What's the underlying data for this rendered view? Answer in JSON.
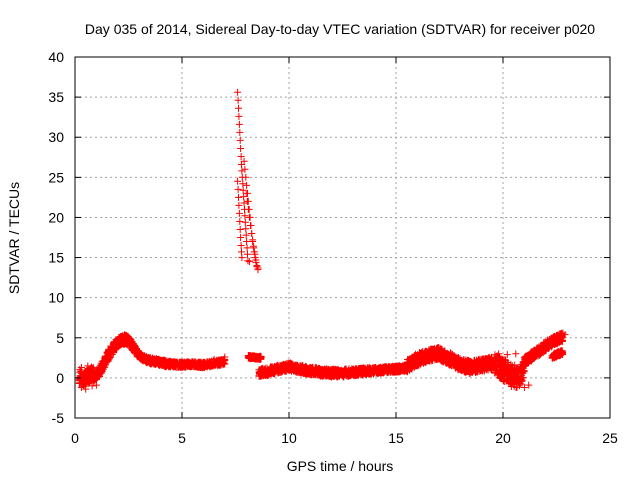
{
  "chart_data": {
    "type": "scatter",
    "title": "Day 035 of 2014, Sidereal Day-to-day VTEC variation (SDTVAR) for receiver p020",
    "xlabel": "GPS time / hours",
    "ylabel": "SDTVAR / TECUs",
    "xlim": [
      0,
      25
    ],
    "ylim": [
      -5,
      40
    ],
    "xticks": [
      0,
      5,
      10,
      15,
      20,
      25
    ],
    "yticks": [
      -5,
      0,
      5,
      10,
      15,
      20,
      25,
      30,
      35,
      40
    ],
    "grid": true,
    "marker": "+",
    "series": [
      {
        "name": "SDTVAR",
        "color": "#ff0000",
        "bands": [
          {
            "x": [
              0.2,
              0.4,
              0.6,
              0.8,
              1.0,
              1.2,
              1.4,
              1.6,
              1.8,
              2.0,
              2.2,
              2.4,
              2.6,
              2.8,
              3.0,
              3.4,
              3.8,
              4.2,
              4.6,
              5.0,
              5.5,
              6.0,
              6.5,
              7.0
            ],
            "y": [
              0.3,
              -0.3,
              0.2,
              0.5,
              0.3,
              1.0,
              2.0,
              3.0,
              3.8,
              4.4,
              4.7,
              4.8,
              4.3,
              3.5,
              2.8,
              2.2,
              2.0,
              1.8,
              1.7,
              1.6,
              1.7,
              1.6,
              1.8,
              2.0
            ],
            "spread": [
              1.0,
              0.8,
              1.0,
              0.9,
              0.7,
              0.7,
              0.7,
              0.7,
              0.7,
              0.6,
              0.6,
              0.6,
              0.6,
              0.5,
              0.4,
              0.4,
              0.4,
              0.4,
              0.35,
              0.35,
              0.35,
              0.35,
              0.35,
              0.35
            ]
          },
          {
            "x": [
              8.1,
              8.3,
              8.5,
              8.7
            ],
            "y": [
              2.6,
              2.6,
              2.5,
              2.5
            ],
            "spread": [
              0.2,
              0.2,
              0.2,
              0.2
            ]
          },
          {
            "x": [
              8.6,
              9.0,
              9.5,
              10.0,
              10.5,
              11.0,
              11.5,
              12.0,
              12.5,
              13.0,
              13.5,
              14.0,
              14.5,
              15.0,
              15.5
            ],
            "y": [
              0.6,
              0.8,
              1.1,
              1.4,
              1.1,
              0.9,
              0.7,
              0.6,
              0.6,
              0.7,
              0.8,
              0.9,
              1.0,
              1.1,
              1.2
            ],
            "spread": [
              0.5,
              0.5,
              0.5,
              0.5,
              0.5,
              0.5,
              0.5,
              0.5,
              0.5,
              0.45,
              0.45,
              0.4,
              0.4,
              0.4,
              0.4
            ]
          },
          {
            "x": [
              15.5,
              16.0,
              16.5,
              17.0,
              17.5,
              18.0,
              18.5,
              19.0,
              19.5
            ],
            "y": [
              1.5,
              2.3,
              2.8,
              3.0,
              2.4,
              1.6,
              1.3,
              1.6,
              1.8
            ],
            "spread": [
              0.8,
              0.8,
              0.8,
              0.8,
              0.8,
              0.8,
              0.8,
              0.8,
              0.8
            ]
          },
          {
            "x": [
              19.6,
              20.0,
              20.4,
              20.8,
              21.0
            ],
            "y": [
              1.8,
              1.0,
              0.4,
              -0.2,
              1.5
            ],
            "spread": [
              1.2,
              1.4,
              1.5,
              1.4,
              1.0
            ]
          },
          {
            "x": [
              21.0,
              21.3,
              21.6,
              22.0,
              22.4,
              22.8
            ],
            "y": [
              2.0,
              2.6,
              3.2,
              4.0,
              4.6,
              5.2
            ],
            "spread": [
              0.6,
              0.6,
              0.6,
              0.6,
              0.6,
              0.6
            ]
          },
          {
            "x": [
              22.3,
              22.6,
              22.8
            ],
            "y": [
              2.7,
              3.0,
              3.2
            ],
            "spread": [
              0.3,
              0.3,
              0.3
            ]
          }
        ],
        "points": [
          [
            7.6,
            35.6
          ],
          [
            7.62,
            34.6
          ],
          [
            7.64,
            33.6
          ],
          [
            7.66,
            32.6
          ],
          [
            7.68,
            31.6
          ],
          [
            7.7,
            30.6
          ],
          [
            7.72,
            29.6
          ],
          [
            7.74,
            28.6
          ],
          [
            7.76,
            27.6
          ],
          [
            7.78,
            26.6
          ],
          [
            7.8,
            25.8
          ],
          [
            7.82,
            25.0
          ],
          [
            7.84,
            24.2
          ],
          [
            7.86,
            23.4
          ],
          [
            7.88,
            22.6
          ],
          [
            7.9,
            21.8
          ],
          [
            7.92,
            21.0
          ],
          [
            7.94,
            20.2
          ],
          [
            7.96,
            19.4
          ],
          [
            7.98,
            18.6
          ],
          [
            8.0,
            17.8
          ],
          [
            8.02,
            17.0
          ],
          [
            8.04,
            16.2
          ],
          [
            8.06,
            15.4
          ],
          [
            8.08,
            14.6
          ],
          [
            7.6,
            24.5
          ],
          [
            7.62,
            23.5
          ],
          [
            7.64,
            22.5
          ],
          [
            7.66,
            21.5
          ],
          [
            7.68,
            20.5
          ],
          [
            7.7,
            19.5
          ],
          [
            7.72,
            18.5
          ],
          [
            7.74,
            17.5
          ],
          [
            7.76,
            16.5
          ],
          [
            7.78,
            15.7
          ],
          [
            7.8,
            15.0
          ],
          [
            7.9,
            27.0
          ],
          [
            7.94,
            26.0
          ],
          [
            7.98,
            25.0
          ],
          [
            8.02,
            24.0
          ],
          [
            8.06,
            23.0
          ],
          [
            8.1,
            22.0
          ],
          [
            8.14,
            21.0
          ],
          [
            8.18,
            20.0
          ],
          [
            8.22,
            19.0
          ],
          [
            8.26,
            18.0
          ],
          [
            8.3,
            17.2
          ],
          [
            8.34,
            16.4
          ],
          [
            8.38,
            15.7
          ],
          [
            8.42,
            15.0
          ],
          [
            8.46,
            14.4
          ],
          [
            8.5,
            13.9
          ],
          [
            8.55,
            13.5
          ],
          [
            8.0,
            23.0
          ],
          [
            8.05,
            22.0
          ],
          [
            8.1,
            21.0
          ],
          [
            8.15,
            20.0
          ],
          [
            8.2,
            19.0
          ],
          [
            8.25,
            18.0
          ],
          [
            8.3,
            17.0
          ],
          [
            8.35,
            16.2
          ],
          [
            8.4,
            15.4
          ],
          [
            8.45,
            14.7
          ],
          [
            8.5,
            14.0
          ],
          [
            8.15,
            14.5
          ],
          [
            8.55,
            13.7
          ],
          [
            0.3,
            -1.2
          ],
          [
            0.5,
            -1.4
          ],
          [
            0.8,
            -1.0
          ],
          [
            1.0,
            -0.9
          ],
          [
            0.6,
            1.5
          ],
          [
            0.3,
            1.3
          ],
          [
            7.0,
            2.6
          ],
          [
            6.5,
            2.3
          ],
          [
            6.8,
            2.2
          ],
          [
            20.8,
            -0.8
          ],
          [
            21.0,
            -1.2
          ],
          [
            21.2,
            -0.9
          ],
          [
            20.2,
            2.9
          ],
          [
            20.6,
            3.0
          ],
          [
            19.8,
            3.0
          ],
          [
            22.8,
            5.6
          ],
          [
            22.9,
            5.4
          ],
          [
            22.7,
            5.5
          ]
        ]
      }
    ]
  }
}
